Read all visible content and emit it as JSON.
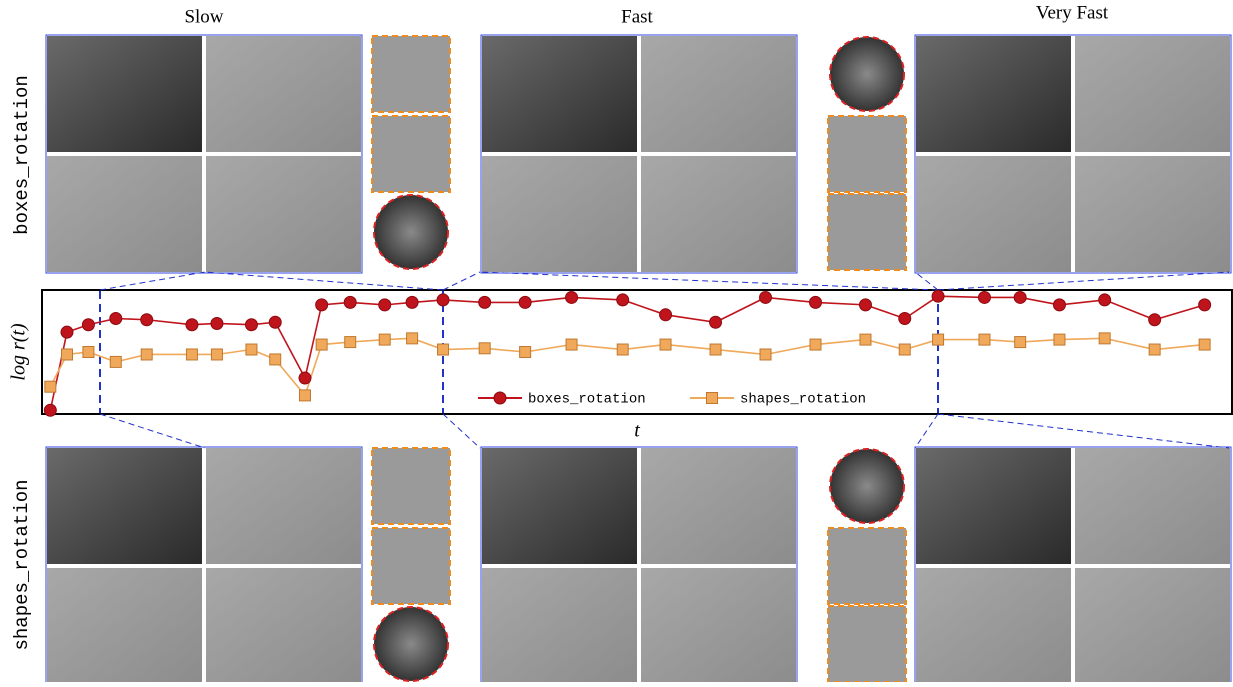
{
  "columns": [
    "Slow",
    "Fast",
    "Very Fast"
  ],
  "rows": [
    "boxes_rotation",
    "shapes_rotation"
  ],
  "chart_data": {
    "type": "line",
    "ylabel": "log r(t)",
    "xlabel": "t",
    "x": [
      0.7,
      2.1,
      3.9,
      6.2,
      8.8,
      12.6,
      14.7,
      17.6,
      19.6,
      22.1,
      23.5,
      25.9,
      28.8,
      31.1,
      33.7,
      37.2,
      40.6,
      44.5,
      48.8,
      52.4,
      56.6,
      60.8,
      65.0,
      69.2,
      72.5,
      75.3,
      79.2,
      82.2,
      85.5,
      89.3,
      93.5,
      97.7
    ],
    "xlim": [
      0,
      100
    ],
    "ylim": [
      0,
      100
    ],
    "series": [
      {
        "name": "boxes_rotation",
        "color": "#c0141c",
        "marker": "circle",
        "values": [
          3,
          66,
          72,
          77,
          76,
          72,
          73,
          72,
          74,
          29,
          88,
          90,
          88,
          90,
          92,
          90,
          90,
          94,
          92,
          80,
          74,
          94,
          90,
          88,
          77,
          95,
          94,
          94,
          88,
          92,
          76,
          88
        ]
      },
      {
        "name": "shapes_rotation",
        "color": "#f0a85a",
        "marker": "square",
        "values": [
          22,
          48,
          50,
          42,
          48,
          48,
          48,
          52,
          44,
          15,
          56,
          58,
          60,
          61,
          52,
          53,
          50,
          56,
          52,
          56,
          52,
          48,
          56,
          60,
          52,
          60,
          60,
          58,
          60,
          61,
          52,
          56
        ]
      }
    ]
  }
}
